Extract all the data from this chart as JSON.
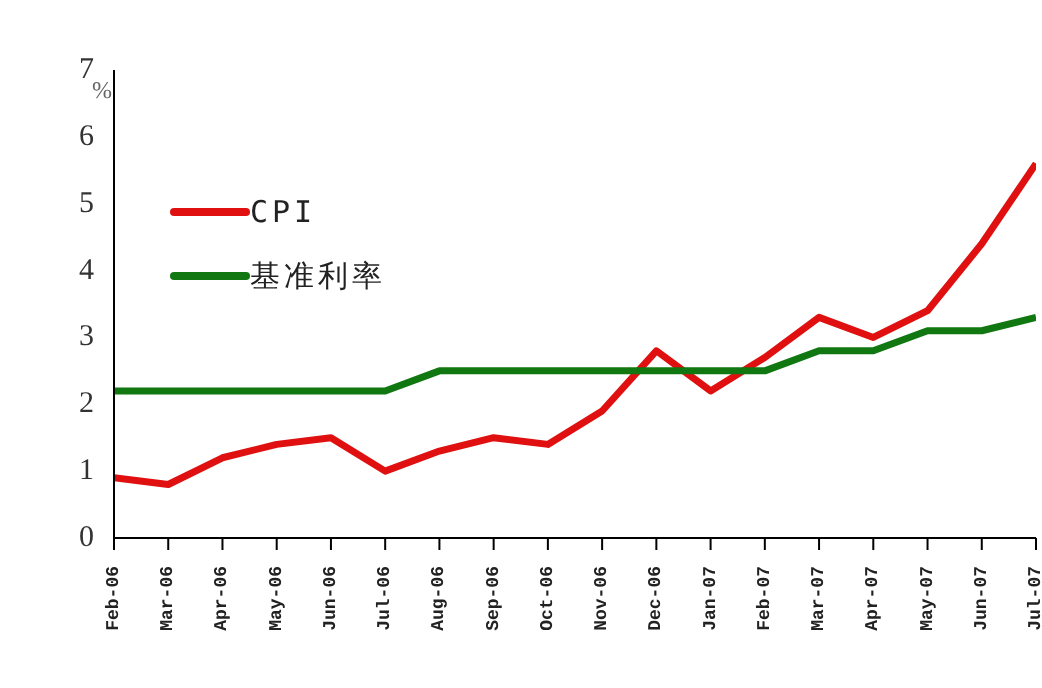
{
  "chart_data": {
    "type": "line",
    "ylabel": "%",
    "categories": [
      "Feb-06",
      "Mar-06",
      "Apr-06",
      "May-06",
      "Jun-06",
      "Jul-06",
      "Aug-06",
      "Sep-06",
      "Oct-06",
      "Nov-06",
      "Dec-06",
      "Jan-07",
      "Feb-07",
      "Mar-07",
      "Apr-07",
      "May-07",
      "Jun-07",
      "Jul-07"
    ],
    "series": [
      {
        "name": "CPI",
        "color": "#e01010",
        "values": [
          0.9,
          0.8,
          1.2,
          1.4,
          1.5,
          1.0,
          1.3,
          1.5,
          1.4,
          1.9,
          2.8,
          2.2,
          2.7,
          3.3,
          3.0,
          3.4,
          4.4,
          5.6
        ]
      },
      {
        "name": "基准利率",
        "color": "#117711",
        "values": [
          2.2,
          2.2,
          2.2,
          2.2,
          2.2,
          2.2,
          2.5,
          2.5,
          2.5,
          2.5,
          2.5,
          2.5,
          2.5,
          2.8,
          2.8,
          3.1,
          3.1,
          3.3
        ]
      }
    ],
    "ylim": [
      0,
      7
    ],
    "yticks": [
      0,
      1,
      2,
      3,
      4,
      5,
      6,
      7
    ],
    "grid": false,
    "legend": "top left",
    "marker": "none",
    "line_style": "solid"
  }
}
